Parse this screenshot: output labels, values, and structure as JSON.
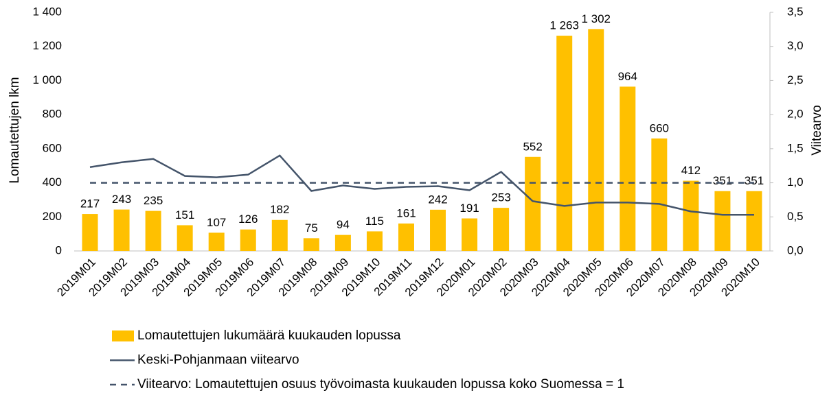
{
  "chart_data": {
    "type": "bar",
    "categories": [
      "2019M01",
      "2019M02",
      "2019M03",
      "2019M04",
      "2019M05",
      "2019M06",
      "2019M07",
      "2019M08",
      "2019M09",
      "2019M10",
      "2019M11",
      "2019M12",
      "2020M01",
      "2020M02",
      "2020M03",
      "2020M04",
      "2020M05",
      "2020M06",
      "2020M07",
      "2020M08",
      "2020M09",
      "2020M10"
    ],
    "series": [
      {
        "name": "Lomautettujen lukumäärä kuukauden lopussa",
        "type": "bar",
        "color": "#FFC000",
        "values": [
          217,
          243,
          235,
          151,
          107,
          126,
          182,
          75,
          94,
          115,
          161,
          242,
          191,
          253,
          552,
          1263,
          1302,
          964,
          660,
          412,
          351,
          351
        ],
        "value_labels": [
          "217",
          "243",
          "235",
          "151",
          "107",
          "126",
          "182",
          "75",
          "94",
          "115",
          "161",
          "242",
          "191",
          "253",
          "552",
          "1 263",
          "1 302",
          "964",
          "660",
          "412",
          "351",
          "351"
        ]
      },
      {
        "name": "Keski-Pohjanmaan viitearvo",
        "type": "line",
        "axis": "y2",
        "color": "#44546A",
        "values": [
          1.23,
          1.3,
          1.35,
          1.1,
          1.08,
          1.12,
          1.4,
          0.88,
          0.96,
          0.91,
          0.94,
          0.95,
          0.89,
          1.16,
          0.73,
          0.66,
          0.71,
          0.71,
          0.69,
          0.58,
          0.53,
          0.53
        ]
      },
      {
        "name": "Viitearvo: Lomautettujen osuus työvoimasta kuukauden lopussa koko Suomessa = 1",
        "type": "line",
        "axis": "y2",
        "color": "#44546A",
        "dashed": true,
        "values": [
          1,
          1,
          1,
          1,
          1,
          1,
          1,
          1,
          1,
          1,
          1,
          1,
          1,
          1,
          1,
          1,
          1,
          1,
          1,
          1,
          1,
          1
        ]
      }
    ],
    "y_label": "Lomautettujen lkm",
    "y2_label": "Viitearvo",
    "ylim": [
      0,
      1400
    ],
    "yticks": [
      0,
      200,
      400,
      600,
      800,
      {
        "value": 1000,
        "label": "1 000"
      },
      {
        "value": 1200,
        "label": "1 200"
      },
      {
        "value": 1400,
        "label": "1 400"
      }
    ],
    "y2lim": [
      0,
      3.5
    ],
    "y2ticks": [
      {
        "value": 0,
        "label": "0,0"
      },
      {
        "value": 0.5,
        "label": "0,5"
      },
      {
        "value": 1,
        "label": "1,0"
      },
      {
        "value": 1.5,
        "label": "1,5"
      },
      {
        "value": 2,
        "label": "2,0"
      },
      {
        "value": 2.5,
        "label": "2,5"
      },
      {
        "value": 3,
        "label": "3,0"
      },
      {
        "value": 3.5,
        "label": "3,5"
      }
    ],
    "legend": "bottom"
  }
}
